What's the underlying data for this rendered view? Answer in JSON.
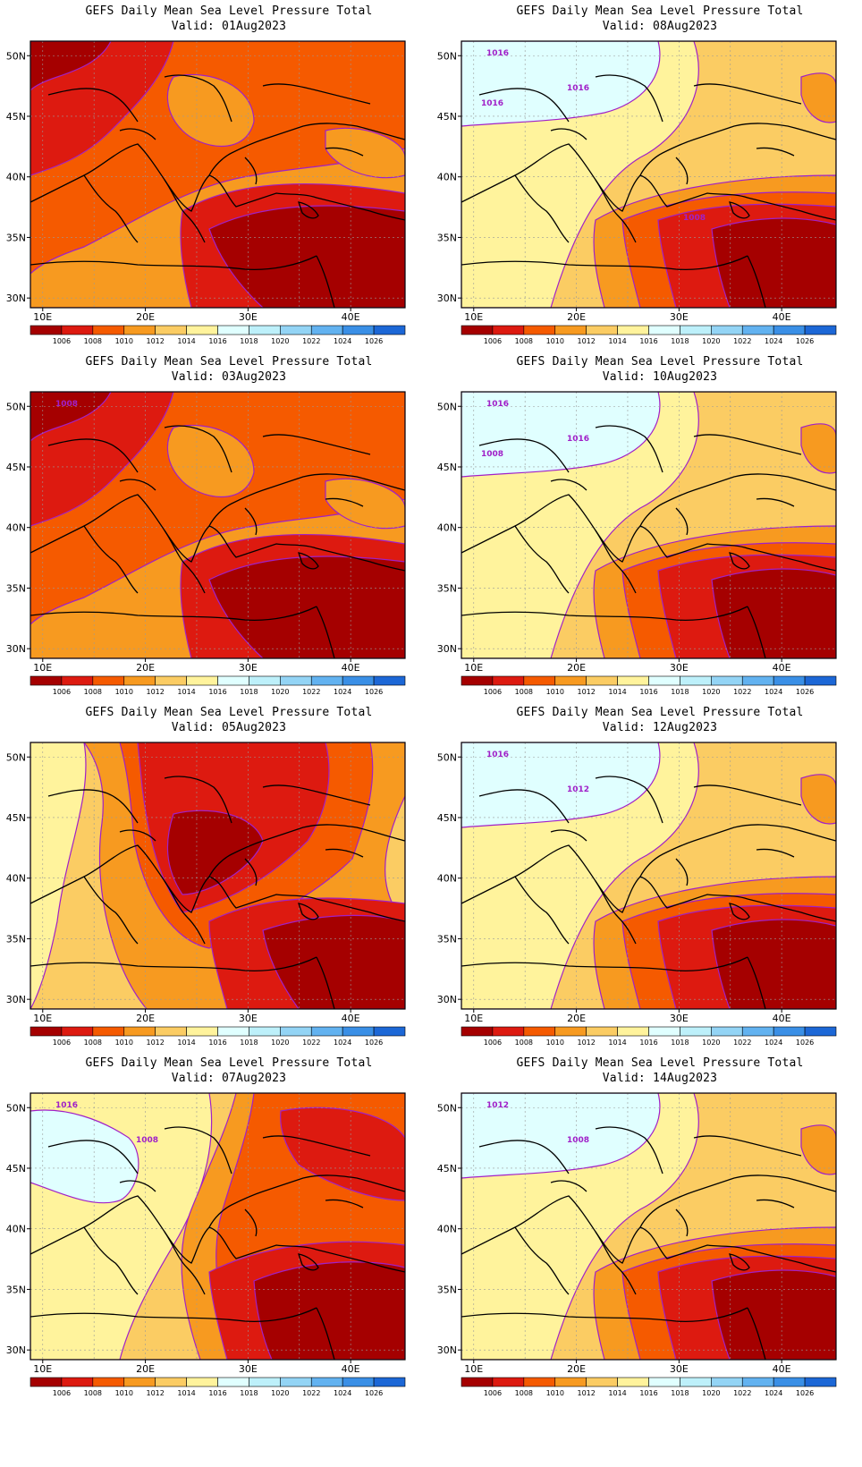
{
  "title": "GEFS Daily Mean Sea Level Pressure Total",
  "valid_prefix": "Valid:",
  "lon_ticks": [
    "10E",
    "20E",
    "30E",
    "40E"
  ],
  "lat_ticks": [
    "50N",
    "45N",
    "40N",
    "35N",
    "30N"
  ],
  "colorbar": {
    "labels": [
      "1006",
      "1008",
      "1010",
      "1012",
      "1014",
      "1016",
      "1018",
      "1020",
      "1022",
      "1024",
      "1026"
    ],
    "colors": [
      "#a50000",
      "#dd1a10",
      "#f55a00",
      "#f79a20",
      "#fbcc63",
      "#fff39c",
      "#e0ffff",
      "#bdf0fa",
      "#93d4f5",
      "#62b2f0",
      "#3a8fe6",
      "#1c67d6"
    ]
  },
  "panels": [
    {
      "id": "01aug",
      "valid": "Valid: 01Aug2023",
      "pattern": "low-east",
      "contour_labels": []
    },
    {
      "id": "08aug",
      "valid": "Valid: 08Aug2023",
      "pattern": "high-northwest",
      "contour_labels": [
        "1016",
        "1016",
        "1016",
        "1008"
      ]
    },
    {
      "id": "03aug",
      "valid": "Valid: 03Aug2023",
      "pattern": "low-east",
      "contour_labels": [
        "1008"
      ]
    },
    {
      "id": "10aug",
      "valid": "Valid: 10Aug2023",
      "pattern": "high-northwest",
      "contour_labels": [
        "1016",
        "1016",
        "1008"
      ]
    },
    {
      "id": "05aug",
      "valid": "Valid: 05Aug2023",
      "pattern": "low-center",
      "contour_labels": []
    },
    {
      "id": "12aug",
      "valid": "Valid: 12Aug2023",
      "pattern": "high-northwest",
      "contour_labels": [
        "1016",
        "1012"
      ]
    },
    {
      "id": "07aug",
      "valid": "Valid: 07Aug2023",
      "pattern": "mixed",
      "contour_labels": [
        "1016",
        "1008"
      ]
    },
    {
      "id": "14aug",
      "valid": "Valid: 14Aug2023",
      "pattern": "high-northwest",
      "contour_labels": [
        "1012",
        "1008"
      ]
    }
  ]
}
